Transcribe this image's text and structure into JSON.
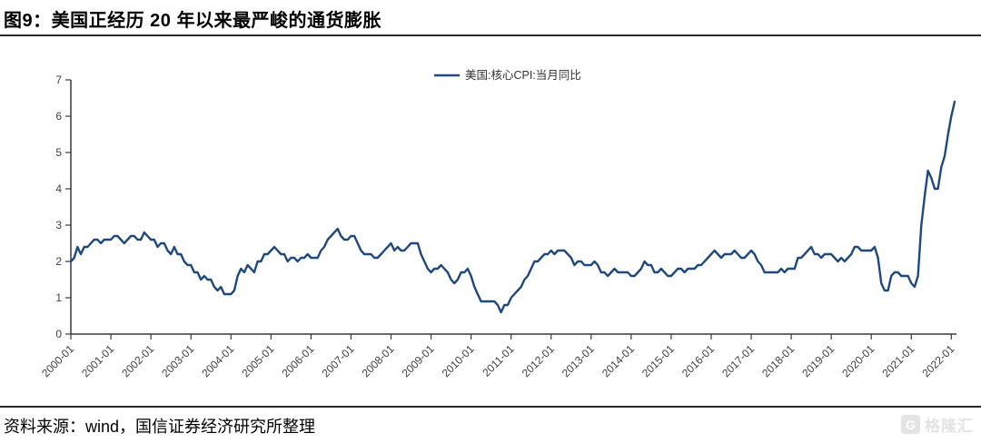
{
  "header": {
    "title": "图9：美国正经历 20 年以来最严峻的通货膨胀"
  },
  "footer": {
    "source": "资料来源：wind，国信证券经济研究所整理"
  },
  "watermark": {
    "icon": "G",
    "brand": "格隆汇"
  },
  "colors": {
    "line": "#1F497D",
    "axis": "#3a3a3a",
    "tick_text": "#404040"
  },
  "chart_data": {
    "type": "line",
    "title": "",
    "legend": [
      "美国:核心CPI:当月同比"
    ],
    "legend_position": "top-center",
    "grid": false,
    "x_start": "2000-01",
    "x_freq": "monthly",
    "x_end": "2022-02",
    "ylim": [
      0,
      7
    ],
    "y_ticks": [
      0,
      1,
      2,
      3,
      4,
      5,
      6,
      7
    ],
    "x_tick_labels": [
      "2000-01",
      "2001-01",
      "2002-01",
      "2003-01",
      "2004-01",
      "2005-01",
      "2006-01",
      "2007-01",
      "2008-01",
      "2009-01",
      "2010-01",
      "2011-01",
      "2012-01",
      "2013-01",
      "2014-01",
      "2015-01",
      "2016-01",
      "2017-01",
      "2018-01",
      "2019-01",
      "2020-01",
      "2021-01",
      "2022-01"
    ],
    "series": [
      {
        "name": "美国:核心CPI:当月同比",
        "color": "#1F497D",
        "values": [
          2.0,
          2.1,
          2.4,
          2.2,
          2.4,
          2.4,
          2.5,
          2.6,
          2.6,
          2.5,
          2.6,
          2.6,
          2.6,
          2.7,
          2.7,
          2.6,
          2.5,
          2.6,
          2.7,
          2.7,
          2.6,
          2.6,
          2.8,
          2.7,
          2.6,
          2.6,
          2.4,
          2.5,
          2.5,
          2.3,
          2.2,
          2.4,
          2.2,
          2.2,
          2.0,
          1.9,
          1.9,
          1.7,
          1.7,
          1.5,
          1.6,
          1.5,
          1.5,
          1.3,
          1.2,
          1.3,
          1.1,
          1.1,
          1.1,
          1.2,
          1.6,
          1.8,
          1.7,
          1.9,
          1.8,
          1.7,
          2.0,
          2.0,
          2.2,
          2.2,
          2.3,
          2.4,
          2.3,
          2.2,
          2.2,
          2.0,
          2.1,
          2.1,
          2.0,
          2.1,
          2.1,
          2.2,
          2.1,
          2.1,
          2.1,
          2.3,
          2.4,
          2.6,
          2.7,
          2.8,
          2.9,
          2.7,
          2.6,
          2.6,
          2.7,
          2.7,
          2.5,
          2.3,
          2.2,
          2.2,
          2.2,
          2.1,
          2.1,
          2.2,
          2.3,
          2.4,
          2.5,
          2.3,
          2.4,
          2.3,
          2.3,
          2.4,
          2.5,
          2.5,
          2.5,
          2.2,
          2.0,
          1.8,
          1.7,
          1.8,
          1.8,
          1.9,
          1.8,
          1.7,
          1.5,
          1.4,
          1.5,
          1.7,
          1.7,
          1.8,
          1.6,
          1.3,
          1.1,
          0.9,
          0.9,
          0.9,
          0.9,
          0.9,
          0.8,
          0.6,
          0.8,
          0.8,
          1.0,
          1.1,
          1.2,
          1.3,
          1.5,
          1.6,
          1.8,
          2.0,
          2.0,
          2.1,
          2.2,
          2.2,
          2.3,
          2.2,
          2.3,
          2.3,
          2.3,
          2.2,
          2.1,
          1.9,
          2.0,
          2.0,
          1.9,
          1.9,
          1.9,
          2.0,
          1.9,
          1.7,
          1.7,
          1.6,
          1.7,
          1.8,
          1.7,
          1.7,
          1.7,
          1.7,
          1.6,
          1.6,
          1.7,
          1.8,
          2.0,
          1.9,
          1.9,
          1.7,
          1.7,
          1.8,
          1.7,
          1.6,
          1.6,
          1.7,
          1.8,
          1.8,
          1.7,
          1.8,
          1.8,
          1.8,
          1.9,
          1.9,
          2.0,
          2.1,
          2.2,
          2.3,
          2.2,
          2.1,
          2.2,
          2.2,
          2.2,
          2.3,
          2.2,
          2.1,
          2.1,
          2.2,
          2.3,
          2.2,
          2.0,
          1.9,
          1.7,
          1.7,
          1.7,
          1.7,
          1.7,
          1.8,
          1.7,
          1.8,
          1.8,
          1.8,
          2.1,
          2.1,
          2.2,
          2.3,
          2.4,
          2.2,
          2.2,
          2.1,
          2.2,
          2.2,
          2.2,
          2.1,
          2.0,
          2.1,
          2.0,
          2.1,
          2.2,
          2.4,
          2.4,
          2.3,
          2.3,
          2.3,
          2.3,
          2.4,
          2.1,
          1.4,
          1.2,
          1.2,
          1.6,
          1.7,
          1.7,
          1.6,
          1.6,
          1.6,
          1.4,
          1.3,
          1.6,
          3.0,
          3.8,
          4.5,
          4.3,
          4.0,
          4.0,
          4.6,
          4.9,
          5.5,
          6.0,
          6.4
        ]
      }
    ]
  }
}
